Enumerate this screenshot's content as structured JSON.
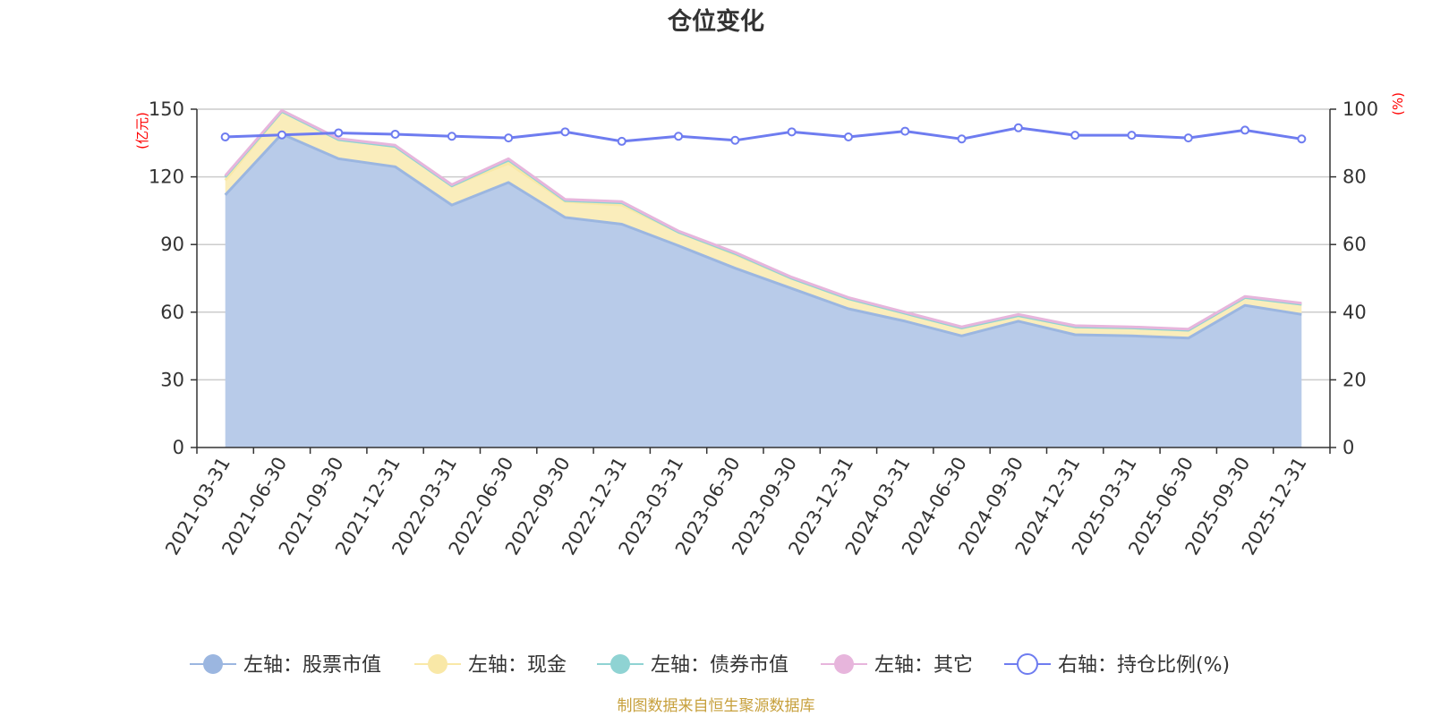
{
  "chart_data": {
    "type": "area",
    "title": "仓位变化",
    "left_unit": "(亿元)",
    "right_unit": "(%)",
    "categories": [
      "2021-03-31",
      "2021-06-30",
      "2021-09-30",
      "2021-12-31",
      "2022-03-31",
      "2022-06-30",
      "2022-09-30",
      "2022-12-31",
      "2023-03-31",
      "2023-06-30",
      "2023-09-30",
      "2023-12-31",
      "2024-03-31",
      "2024-06-30",
      "2024-09-30",
      "2024-12-31",
      "2025-03-31",
      "2025-06-30",
      "2025-09-30",
      "2025-12-31"
    ],
    "left_ylim": [
      0,
      150
    ],
    "left_ticks": [
      "0",
      "30",
      "60",
      "90",
      "120",
      "150"
    ],
    "right_ylim": [
      0,
      100
    ],
    "right_ticks": [
      "0",
      "20",
      "40",
      "60",
      "80",
      "100"
    ],
    "series": [
      {
        "name": "左轴：股票市值",
        "axis": "left",
        "stack": true,
        "color": "#9bb6e0",
        "fill": "#b8cbe9",
        "values": [
          112,
          139,
          128,
          124.5,
          107.5,
          117.5,
          102,
          99,
          89.5,
          79.5,
          70.5,
          61.5,
          56,
          49.5,
          56,
          50,
          49.5,
          48.5,
          63,
          59
        ]
      },
      {
        "name": "左轴：现金",
        "axis": "left",
        "stack": true,
        "color": "#f9e8a7",
        "fill": "#faedbb",
        "values": [
          6.5,
          10,
          8.5,
          9,
          8.5,
          8.5,
          7,
          8.5,
          6,
          6,
          4.5,
          4.5,
          3.5,
          3.5,
          2.5,
          3.5,
          3.5,
          3.5,
          3.5,
          4.5
        ]
      },
      {
        "name": "左轴：债券市值",
        "axis": "left",
        "stack": true,
        "color": "#8fd3d3",
        "fill": "#a9dede",
        "values": [
          1.5,
          0,
          0,
          0,
          0,
          1.5,
          0.5,
          1,
          0,
          0.5,
          0,
          0,
          0,
          0,
          0,
          0,
          0,
          0,
          0,
          0
        ]
      },
      {
        "name": "左轴：其它",
        "axis": "left",
        "stack": true,
        "color": "#e7b5dc",
        "fill": "#eec8e6",
        "values": [
          0.5,
          0.5,
          0.5,
          0.5,
          0.5,
          0.5,
          0.5,
          0.5,
          0.5,
          0.5,
          0.5,
          0.5,
          0.5,
          0.5,
          0.5,
          0.5,
          0.5,
          0.5,
          0.5,
          0.5
        ]
      },
      {
        "name": "右轴：持仓比例(%)",
        "axis": "right",
        "stack": false,
        "color": "#6e7cf0",
        "values": [
          91.8,
          92.4,
          93.0,
          92.6,
          92.0,
          91.5,
          93.3,
          90.5,
          92.0,
          90.8,
          93.3,
          91.8,
          93.5,
          91.2,
          94.5,
          92.3,
          92.3,
          91.5,
          93.8,
          91.2
        ]
      }
    ]
  },
  "source_text": "制图数据来自恒生聚源数据库",
  "colors": {
    "axis": "#333333",
    "grid": "#cccccc",
    "unit": "#ff0000",
    "source": "#c7a03c"
  }
}
